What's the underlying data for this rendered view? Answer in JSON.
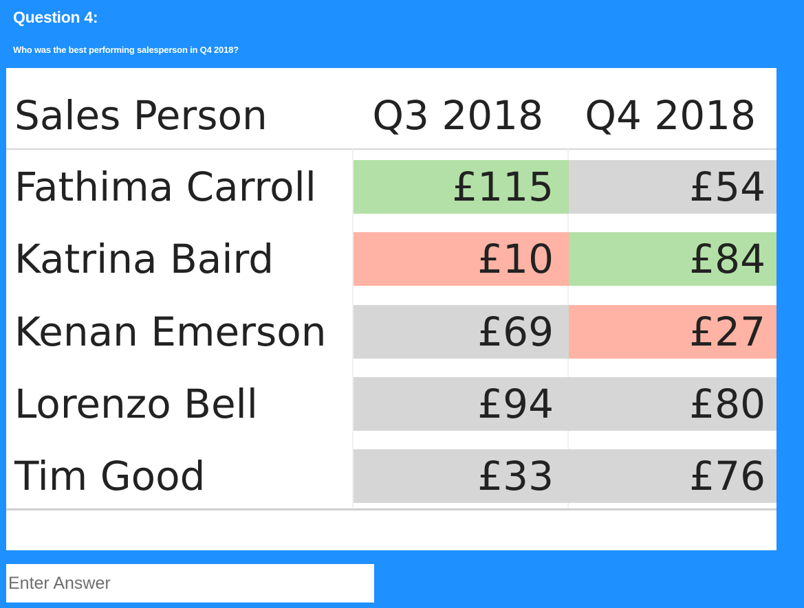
{
  "question": {
    "title": "Question 4:",
    "text": "Who was the best performing salesperson in Q4 2018?"
  },
  "table": {
    "headers": {
      "name": "Sales Person",
      "q3": "Q3 2018",
      "q4": "Q4 2018"
    },
    "rows": [
      {
        "name": "Fathima Carroll",
        "q3": "£115",
        "q4": "£54"
      },
      {
        "name": "Katrina Baird",
        "q3": "£10",
        "q4": "£84"
      },
      {
        "name": "Kenan Emerson",
        "q3": "£69",
        "q4": "£27"
      },
      {
        "name": "Lorenzo Bell",
        "q3": "£94",
        "q4": "£80"
      },
      {
        "name": "Tim Good",
        "q3": "£33",
        "q4": "£76"
      }
    ]
  },
  "highlight_colors": {
    "highest": "#b3e0a6",
    "lowest": "#ffb3a4",
    "neutral": "#d6d6d6"
  },
  "cell_status": {
    "q3": [
      "highest",
      "lowest",
      "neutral",
      "neutral",
      "neutral"
    ],
    "q4": [
      "neutral",
      "highest",
      "lowest",
      "neutral",
      "neutral"
    ]
  },
  "answer": {
    "placeholder": "Enter Answer",
    "value": ""
  },
  "colors": {
    "background": "#1e90ff",
    "panel": "#ffffff",
    "text": "#222222"
  }
}
